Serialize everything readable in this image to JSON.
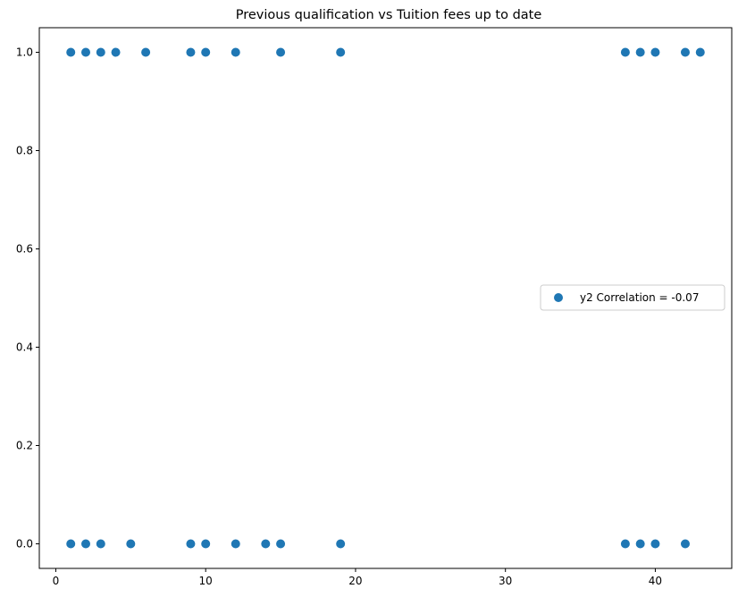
{
  "chart_data": {
    "type": "scatter",
    "title": "Previous qualification vs Tuition fees up to date",
    "xlabel": "",
    "ylabel": "",
    "xlim": [
      -1.1,
      45.1
    ],
    "ylim": [
      -0.05,
      1.05
    ],
    "xticks": [
      0,
      10,
      20,
      30,
      40
    ],
    "yticks": [
      0.0,
      0.2,
      0.4,
      0.6,
      0.8,
      1.0
    ],
    "xtick_labels": [
      "0",
      "10",
      "20",
      "30",
      "40"
    ],
    "ytick_labels": [
      "0.0",
      "0.2",
      "0.4",
      "0.6",
      "0.8",
      "1.0"
    ],
    "grid": false,
    "legend_position": "center-right",
    "series": [
      {
        "name": "y2 Correlation = -0.07",
        "color": "#1f77b4",
        "points": [
          [
            1,
            1
          ],
          [
            2,
            1
          ],
          [
            3,
            1
          ],
          [
            4,
            1
          ],
          [
            6,
            1
          ],
          [
            9,
            1
          ],
          [
            10,
            1
          ],
          [
            12,
            1
          ],
          [
            15,
            1
          ],
          [
            19,
            1
          ],
          [
            38,
            1
          ],
          [
            39,
            1
          ],
          [
            40,
            1
          ],
          [
            42,
            1
          ],
          [
            43,
            1
          ],
          [
            1,
            0
          ],
          [
            2,
            0
          ],
          [
            3,
            0
          ],
          [
            5,
            0
          ],
          [
            9,
            0
          ],
          [
            10,
            0
          ],
          [
            12,
            0
          ],
          [
            14,
            0
          ],
          [
            15,
            0
          ],
          [
            19,
            0
          ],
          [
            38,
            0
          ],
          [
            39,
            0
          ],
          [
            40,
            0
          ],
          [
            42,
            0
          ]
        ]
      }
    ]
  }
}
